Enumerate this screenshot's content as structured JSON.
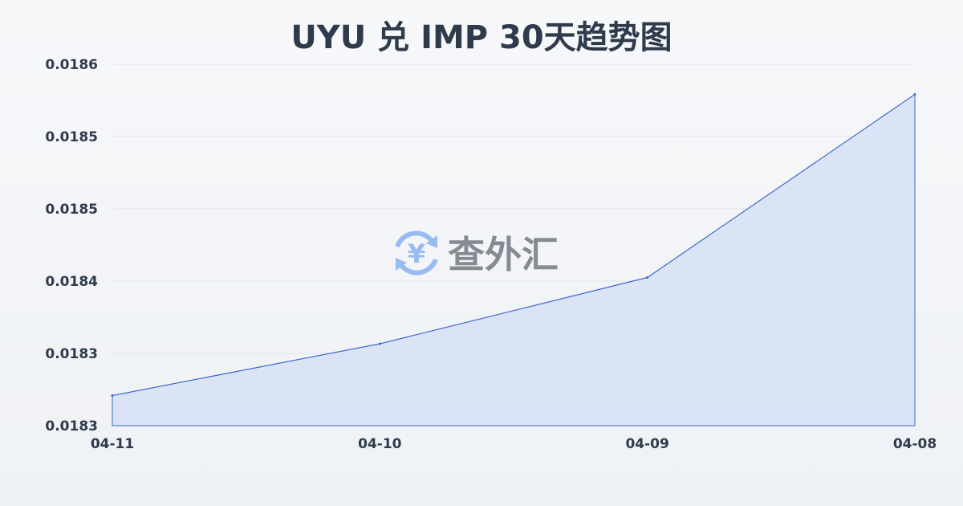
{
  "chart_data": {
    "type": "area",
    "title": "UYU 兑 IMP 30天趋势图",
    "xlabel": "",
    "ylabel": "",
    "categories": [
      "04-11",
      "04-10",
      "04-09",
      "04-08"
    ],
    "series": [
      {
        "values": [
          0.018305,
          0.018348,
          0.018403,
          0.018555
        ]
      }
    ],
    "ylim": [
      0.01828,
      0.01858
    ],
    "y_tick_labels": [
      "0.0186",
      "0.0185",
      "0.0185",
      "0.0184",
      "0.0183",
      "0.0183"
    ],
    "grid": true,
    "colors": {
      "line": "#3a66c9",
      "fill": "#d6e0f5",
      "grid": "#e3e6ea",
      "text": "#2f3a4b"
    }
  },
  "watermark": {
    "text": "查外汇",
    "icon": "yen-exchange-icon",
    "icon_color": "#8fb6f2"
  }
}
